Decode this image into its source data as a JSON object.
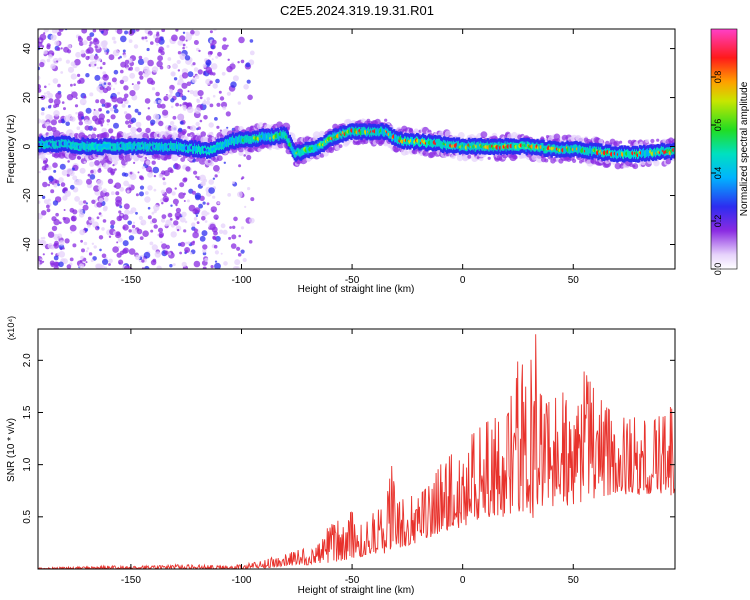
{
  "title": "C2E5.2024.319.19.31.R01",
  "chart_data": [
    {
      "type": "heatmap",
      "xlabel": "Height of straight line (km)",
      "ylabel": "Frequency (Hz)",
      "xlim": [
        -192,
        96
      ],
      "ylim": [
        -50,
        48
      ],
      "x_ticks": [
        -150,
        -100,
        -50,
        0,
        50
      ],
      "x_tick_labels": [
        "-150",
        "-100",
        "-50",
        "0",
        "50"
      ],
      "y_ticks": [
        -40,
        -20,
        0,
        20,
        40
      ],
      "y_tick_labels": [
        "-40",
        "-20",
        "0",
        "20",
        "40"
      ],
      "ridge": {
        "x": [
          -190,
          -180,
          -170,
          -160,
          -150,
          -140,
          -130,
          -120,
          -115,
          -110,
          -105,
          -100,
          -95,
          -90,
          -85,
          -80,
          -76,
          -72,
          -65,
          -60,
          -55,
          -50,
          -45,
          -40,
          -35,
          -30,
          -25,
          -20,
          -10,
          0,
          10,
          20,
          30,
          40,
          50,
          60,
          70,
          80,
          90,
          96
        ],
        "freq": [
          1,
          1,
          0,
          0,
          0,
          0,
          0,
          -1,
          -2,
          0,
          2,
          3,
          3,
          4,
          4,
          5,
          -3,
          -2,
          0,
          3,
          5,
          6,
          6,
          6,
          6,
          3,
          2,
          2,
          1,
          0,
          0,
          0,
          0,
          -1,
          -1,
          -2,
          -3,
          -3,
          -2,
          -2
        ]
      },
      "colorbar": {
        "label": "Normalized spectral amplitude",
        "range": [
          0,
          1
        ],
        "ticks": [
          0.0,
          0.2,
          0.4,
          0.6,
          0.8
        ],
        "tick_labels": [
          "0.0",
          "0.2",
          "0.4",
          "0.6",
          "0.8"
        ],
        "colormap": "rainbow"
      },
      "grid": false
    },
    {
      "type": "line",
      "xlabel": "Height of straight line (km)",
      "ylabel": "SNR (10 * v/v)",
      "multiplier": "(x10⁴)",
      "xlim": [
        -192,
        96
      ],
      "ylim": [
        0,
        2.3
      ],
      "x_ticks": [
        -150,
        -100,
        -50,
        0,
        50
      ],
      "x_tick_labels": [
        "-150",
        "-100",
        "-50",
        "0",
        "50"
      ],
      "y_ticks": [
        0.5,
        1.0,
        1.5,
        2.0
      ],
      "y_tick_labels": [
        "0.5",
        "1.0",
        "1.5",
        "2.0"
      ],
      "series": [
        {
          "color": "#e8322c",
          "x": [
            -192,
            -180,
            -170,
            -160,
            -150,
            -140,
            -130,
            -120,
            -110,
            -100,
            -95,
            -90,
            -85,
            -80,
            -75,
            -70,
            -65,
            -60,
            -55,
            -50,
            -45,
            -40,
            -35,
            -32,
            -30,
            -25,
            -20,
            -15,
            -10,
            -5,
            0,
            5,
            10,
            15,
            20,
            25,
            30,
            33,
            36,
            40,
            45,
            50,
            55,
            60,
            65,
            70,
            75,
            80,
            85,
            90,
            96
          ],
          "envelope": [
            0.01,
            0.02,
            0.02,
            0.03,
            0.03,
            0.03,
            0.04,
            0.04,
            0.03,
            0.04,
            0.06,
            0.08,
            0.12,
            0.14,
            0.18,
            0.2,
            0.3,
            0.42,
            0.48,
            0.55,
            0.4,
            0.55,
            0.6,
            1.0,
            0.62,
            0.7,
            0.7,
            0.8,
            1.0,
            1.1,
            1.25,
            1.3,
            1.4,
            1.45,
            1.45,
            2.0,
            1.9,
            2.25,
            1.6,
            1.6,
            1.7,
            1.55,
            1.9,
            1.7,
            1.55,
            1.45,
            1.45,
            1.55,
            1.4,
            1.65,
            1.5
          ],
          "baseline": [
            0.0,
            0.0,
            0.0,
            0.0,
            0.0,
            0.0,
            0.0,
            0.0,
            0.0,
            0.0,
            0.01,
            0.01,
            0.02,
            0.03,
            0.03,
            0.04,
            0.05,
            0.06,
            0.08,
            0.1,
            0.12,
            0.15,
            0.15,
            0.2,
            0.2,
            0.22,
            0.25,
            0.3,
            0.35,
            0.38,
            0.4,
            0.45,
            0.48,
            0.5,
            0.5,
            0.55,
            0.55,
            0.45,
            0.55,
            0.58,
            0.6,
            0.62,
            0.65,
            0.68,
            0.7,
            0.7,
            0.72,
            0.7,
            0.72,
            0.72,
            0.7
          ]
        }
      ],
      "grid": false
    }
  ]
}
